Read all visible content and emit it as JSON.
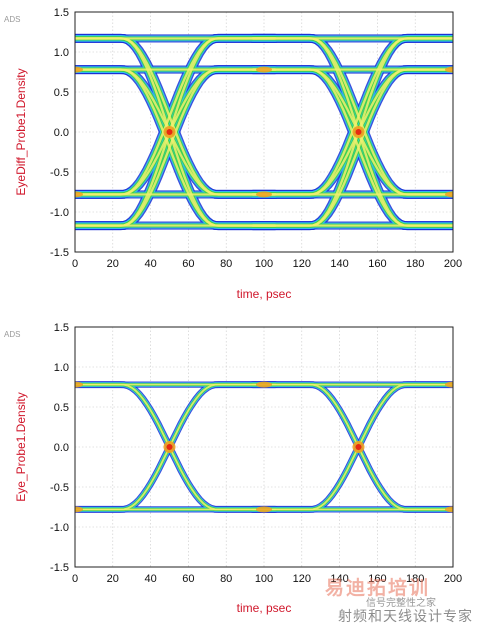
{
  "chart_data": [
    {
      "type": "heatmap",
      "ads_label": "ADS",
      "xlabel": "time, psec",
      "ylabel": "EyeDiff_Probe1.Density",
      "xlim": [
        0,
        200
      ],
      "ylim": [
        -1.5,
        1.5
      ],
      "xticks": [
        0,
        20,
        40,
        60,
        80,
        100,
        120,
        140,
        160,
        180,
        200
      ],
      "yticks": [
        1.5,
        1.0,
        0.5,
        0.0,
        -0.5,
        -1.0,
        -1.5
      ],
      "ytick_labels": [
        "1.5",
        "1.0",
        "0.5",
        "0.0",
        "-0.5",
        "-1.0",
        "-1.5"
      ],
      "grid": true,
      "levels": [
        1.17,
        0.78,
        -0.78,
        -1.17
      ],
      "crossings_ps": [
        50,
        150
      ],
      "period_ps": 100
    },
    {
      "type": "heatmap",
      "ads_label": "ADS",
      "xlabel": "time, psec",
      "ylabel": "Eye_Probe1.Density",
      "xlim": [
        0,
        200
      ],
      "ylim": [
        -1.5,
        1.5
      ],
      "xticks": [
        0,
        20,
        40,
        60,
        80,
        100,
        120,
        140,
        160,
        180,
        200
      ],
      "yticks": [
        1.5,
        1.0,
        0.5,
        0.0,
        -0.5,
        -1.0,
        -1.5
      ],
      "ytick_labels": [
        "1.5",
        "1.0",
        "0.5",
        "0.0",
        "-0.5",
        "-1.0",
        "-1.5"
      ],
      "grid": true,
      "levels": [
        0.78,
        -0.78
      ],
      "crossings_ps": [
        50,
        150
      ],
      "period_ps": 100
    }
  ],
  "watermark": {
    "line1": "射频和天线设计专家",
    "line2": "信号完整性之家",
    "logo": "易迪拓培训"
  },
  "colors": {
    "axis_label": "#d0172b",
    "density_low": "#1a2fd6",
    "density_mid_low": "#35c4f0",
    "density_mid": "#3fd23f",
    "density_mid_high": "#f0f070",
    "density_high": "#f0a020",
    "density_peak": "#e62a12"
  }
}
